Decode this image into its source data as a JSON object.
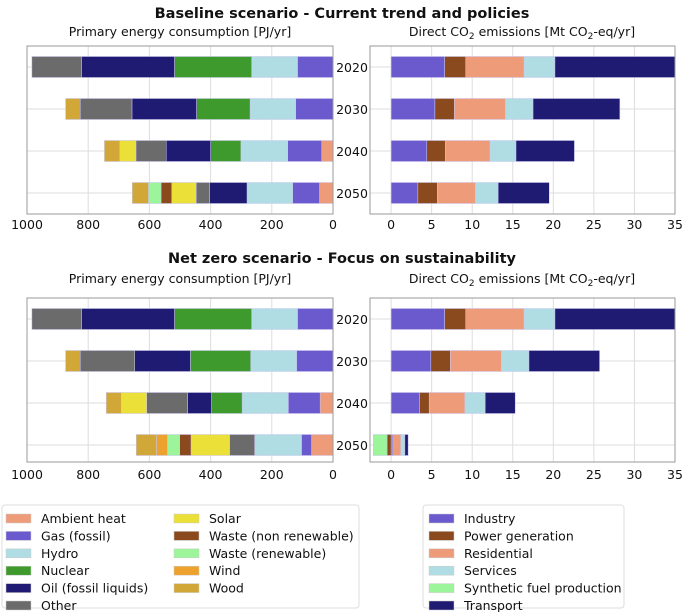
{
  "colors": {
    "Ambient heat": "#ee9b7a",
    "Gas (fossil)": "#6a5acd",
    "Hydro": "#b0dde4",
    "Nuclear": "#3f9a2e",
    "Oil (fossil liquids)": "#1f1a72",
    "Other": "#6b6b6b",
    "Solar": "#ebe038",
    "Waste (non renewable)": "#8b4a1e",
    "Waste (renewable)": "#9cf59a",
    "Wind": "#eda22e",
    "Wood": "#d1a737",
    "Industry": "#6a5acd",
    "Power generation": "#8b4a1e",
    "Residential": "#ee9b7a",
    "Services": "#b0dde4",
    "Synthetic fuel production": "#9cf59a",
    "Transport": "#1f1a72"
  },
  "chart_data": [
    {
      "type": "bar",
      "orientation": "horizontal-stacked",
      "panel": "Baseline scenario - Current trend and policies",
      "title": "Primary energy consumption [PJ/yr]",
      "xlim": [
        1000,
        0
      ],
      "xticks": [
        1000,
        800,
        600,
        400,
        200,
        0
      ],
      "grid": true,
      "categories": [
        "2020",
        "2030",
        "2040",
        "2050"
      ],
      "series": [
        {
          "name": "Ambient heat",
          "values": [
            0,
            0,
            37,
            44
          ]
        },
        {
          "name": "Gas (fossil)",
          "values": [
            116,
            122,
            111,
            88
          ]
        },
        {
          "name": "Hydro",
          "values": [
            150,
            149,
            153,
            149
          ]
        },
        {
          "name": "Nuclear",
          "values": [
            252,
            175,
            99,
            0
          ]
        },
        {
          "name": "Oil (fossil liquids)",
          "values": [
            304,
            211,
            145,
            122
          ]
        },
        {
          "name": "Other",
          "values": [
            162,
            169,
            99,
            44
          ]
        },
        {
          "name": "Solar",
          "values": [
            0,
            0,
            53,
            80
          ]
        },
        {
          "name": "Waste (non renewable)",
          "values": [
            0,
            0,
            0,
            35
          ]
        },
        {
          "name": "Waste (renewable)",
          "values": [
            0,
            0,
            0,
            41
          ]
        },
        {
          "name": "Wind",
          "values": [
            0,
            0,
            0,
            0
          ]
        },
        {
          "name": "Wood",
          "values": [
            0,
            48,
            50,
            53
          ]
        }
      ]
    },
    {
      "type": "bar",
      "orientation": "horizontal-stacked",
      "panel": "Baseline scenario - Current trend and policies",
      "title": "Direct CO₂ emissions [Mt CO₂-eq/yr]",
      "xlim": [
        -2.6,
        35
      ],
      "xticks": [
        0,
        5,
        10,
        15,
        20,
        25,
        30,
        35
      ],
      "grid": true,
      "categories": [
        "2020",
        "2030",
        "2040",
        "2050"
      ],
      "series": [
        {
          "name": "Industry",
          "values": [
            6.6,
            5.4,
            4.4,
            3.3
          ]
        },
        {
          "name": "Power generation",
          "values": [
            2.6,
            2.4,
            2.3,
            2.4
          ]
        },
        {
          "name": "Residential",
          "values": [
            7.2,
            6.3,
            5.5,
            4.7
          ]
        },
        {
          "name": "Services",
          "values": [
            3.8,
            3.4,
            3.2,
            2.8
          ]
        },
        {
          "name": "Synthetic fuel production",
          "values": [
            0,
            0,
            0,
            0
          ]
        },
        {
          "name": "Transport",
          "values": [
            14.8,
            10.7,
            7.2,
            6.3
          ]
        }
      ]
    },
    {
      "type": "bar",
      "orientation": "horizontal-stacked",
      "panel": "Net zero scenario - Focus on sustainability",
      "title": "Primary energy consumption [PJ/yr]",
      "xlim": [
        1000,
        0
      ],
      "xticks": [
        1000,
        800,
        600,
        400,
        200,
        0
      ],
      "grid": true,
      "categories": [
        "2020",
        "2030",
        "2040",
        "2050"
      ],
      "series": [
        {
          "name": "Ambient heat",
          "values": [
            0,
            0,
            42,
            70
          ]
        },
        {
          "name": "Gas (fossil)",
          "values": [
            116,
            119,
            104,
            33
          ]
        },
        {
          "name": "Hydro",
          "values": [
            150,
            150,
            151,
            153
          ]
        },
        {
          "name": "Nuclear",
          "values": [
            252,
            197,
            100,
            0
          ]
        },
        {
          "name": "Oil (fossil liquids)",
          "values": [
            304,
            182,
            78,
            0
          ]
        },
        {
          "name": "Other",
          "values": [
            162,
            178,
            134,
            82
          ]
        },
        {
          "name": "Solar",
          "values": [
            0,
            0,
            83,
            126
          ]
        },
        {
          "name": "Waste (non renewable)",
          "values": [
            0,
            0,
            0,
            37
          ]
        },
        {
          "name": "Waste (renewable)",
          "values": [
            0,
            0,
            0,
            40
          ]
        },
        {
          "name": "Wind",
          "values": [
            0,
            0,
            0,
            36
          ]
        },
        {
          "name": "Wood",
          "values": [
            0,
            48,
            49,
            66
          ]
        }
      ]
    },
    {
      "type": "bar",
      "orientation": "horizontal-stacked",
      "panel": "Net zero scenario - Focus on sustainability",
      "title": "Direct CO₂ emissions [Mt CO₂-eq/yr]",
      "xlim": [
        -2.6,
        35
      ],
      "xticks": [
        0,
        5,
        10,
        15,
        20,
        25,
        30,
        35
      ],
      "grid": true,
      "categories": [
        "2020",
        "2030",
        "2040",
        "2050"
      ],
      "series": [
        {
          "name": "Industry",
          "values": [
            6.6,
            4.9,
            3.5,
            0.2
          ]
        },
        {
          "name": "Power generation",
          "values": [
            2.6,
            2.4,
            1.2,
            -0.5
          ]
        },
        {
          "name": "Residential",
          "values": [
            7.2,
            6.3,
            4.4,
            1.0
          ]
        },
        {
          "name": "Services",
          "values": [
            3.8,
            3.4,
            2.5,
            0.5
          ]
        },
        {
          "name": "Synthetic fuel production",
          "values": [
            0,
            0,
            0,
            -1.7
          ]
        },
        {
          "name": "Transport",
          "values": [
            14.8,
            8.7,
            3.7,
            0.4
          ]
        }
      ]
    }
  ],
  "panels": [
    {
      "title": "Baseline scenario - Current trend and policies"
    },
    {
      "title": "Net zero scenario - Focus on sustainability"
    }
  ],
  "subtitles": {
    "energy": "Primary energy consumption [PJ/yr]",
    "co2_pre": "Direct CO",
    "co2_sub": "2",
    "co2_mid": " emissions [Mt CO",
    "co2_sub2": "2",
    "co2_post": "-eq/yr]"
  },
  "legend_energy": [
    [
      "Ambient heat",
      "Gas (fossil)",
      "Hydro",
      "Nuclear",
      "Oil (fossil liquids)",
      "Other"
    ],
    [
      "Solar",
      "Waste (non renewable)",
      "Waste (renewable)",
      "Wind",
      "Wood"
    ]
  ],
  "legend_co2": [
    "Industry",
    "Power generation",
    "Residential",
    "Services",
    "Synthetic fuel production",
    "Transport"
  ]
}
